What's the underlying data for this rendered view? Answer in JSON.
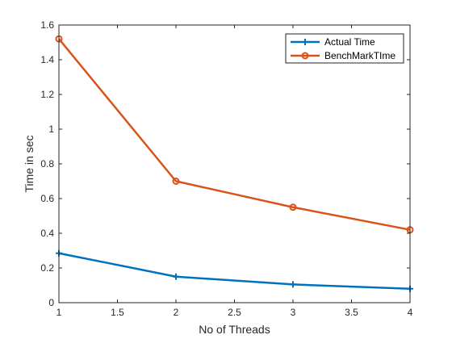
{
  "chart_data": {
    "type": "line",
    "title": "",
    "xlabel": "No of Threads",
    "ylabel": "Time in sec",
    "xlim": [
      1,
      4
    ],
    "ylim": [
      0,
      1.6
    ],
    "xticks": [
      "1",
      "1.5",
      "2",
      "2.5",
      "3",
      "3.5",
      "4"
    ],
    "yticks": [
      "0",
      "0.2",
      "0.4",
      "0.6",
      "0.8",
      "1",
      "1.2",
      "1.4",
      "1.6"
    ],
    "x": [
      1,
      2,
      3,
      4
    ],
    "series": [
      {
        "name": "Actual Time",
        "values": [
          0.285,
          0.15,
          0.105,
          0.08
        ],
        "color": "#0072BD",
        "marker": "plus"
      },
      {
        "name": "BenchMarkTIme",
        "values": [
          1.52,
          0.7,
          0.55,
          0.42
        ],
        "color": "#D95319",
        "marker": "circle"
      }
    ],
    "grid": false,
    "legend_position": "top-right"
  }
}
